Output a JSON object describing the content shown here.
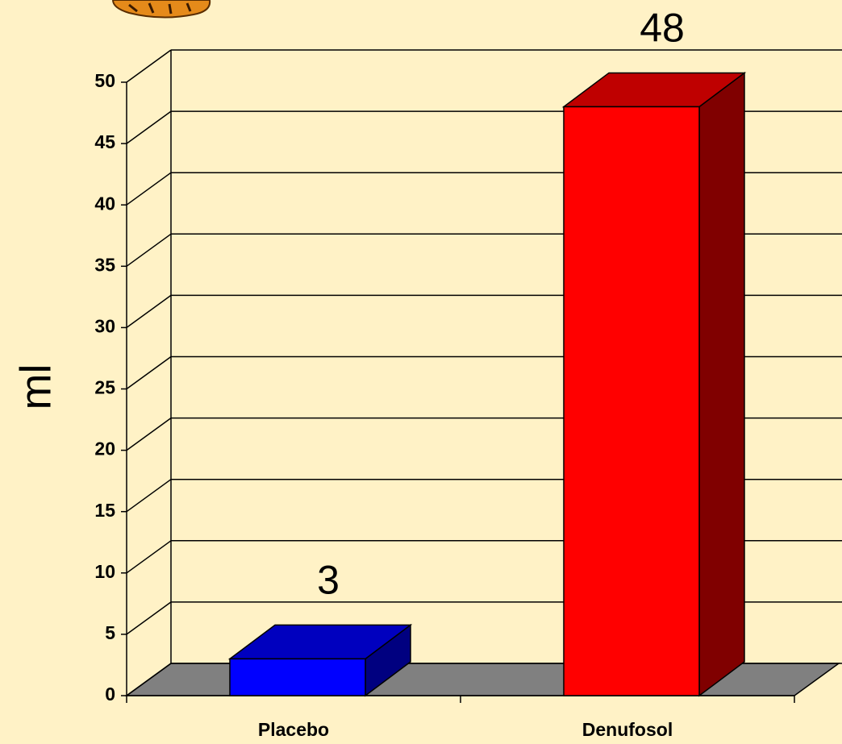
{
  "chart_data": {
    "type": "bar3d",
    "y_label": "ml",
    "categories": [
      "Placebo",
      "Denufosol"
    ],
    "values": [
      3,
      48
    ],
    "colors": [
      "#0000FF",
      "#FF0000"
    ],
    "ylim": [
      0,
      50
    ],
    "yticks": [
      0,
      5,
      10,
      15,
      20,
      25,
      30,
      35,
      40,
      45,
      50
    ],
    "grid": true
  }
}
